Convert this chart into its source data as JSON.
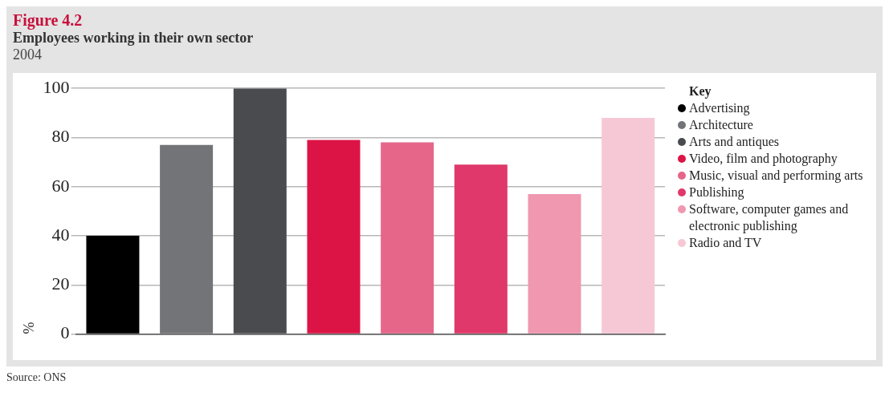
{
  "chart_data": {
    "type": "bar",
    "title": "Figure 4.2",
    "subtitle": "Employees working in their own sector",
    "annotations": [
      "2004",
      "Source: ONS"
    ],
    "ylabel": "%",
    "legend_title": "Key",
    "legend": "right",
    "grid": "y",
    "categories": [
      null,
      null,
      null,
      null,
      null,
      null,
      null,
      null
    ],
    "series": [
      {
        "name": "Advertising",
        "color": "#000000",
        "values": [
          40,
          null,
          null,
          null,
          null,
          null,
          null,
          null
        ]
      },
      {
        "name": "Architecture",
        "color": "#737477",
        "values": [
          null,
          77,
          null,
          null,
          null,
          null,
          null,
          null
        ]
      },
      {
        "name": "Arts and antiques",
        "color": "#4a4b4e",
        "values": [
          null,
          null,
          100,
          null,
          null,
          null,
          null,
          null
        ]
      },
      {
        "name": "Video, film and photography",
        "color": "#dc1446",
        "values": [
          null,
          null,
          null,
          79,
          null,
          null,
          null,
          null
        ]
      },
      {
        "name": "Music, visual and performing arts",
        "color": "#e6668a",
        "values": [
          null,
          null,
          null,
          null,
          78,
          null,
          null,
          null
        ]
      },
      {
        "name": "Publishing",
        "color": "#e0386a",
        "values": [
          null,
          null,
          null,
          null,
          null,
          69,
          null,
          null
        ]
      },
      {
        "name": "Software, computer games and electronic publishing",
        "color": "#ef98b0",
        "values": [
          null,
          null,
          null,
          null,
          null,
          null,
          57,
          null
        ]
      },
      {
        "name": "Radio and TV",
        "color": "#f6c8d6",
        "values": [
          null,
          null,
          null,
          null,
          null,
          null,
          null,
          88
        ]
      }
    ],
    "ylim": [
      0,
      100
    ],
    "yticks": [
      0,
      20,
      40,
      60,
      80,
      100
    ]
  }
}
